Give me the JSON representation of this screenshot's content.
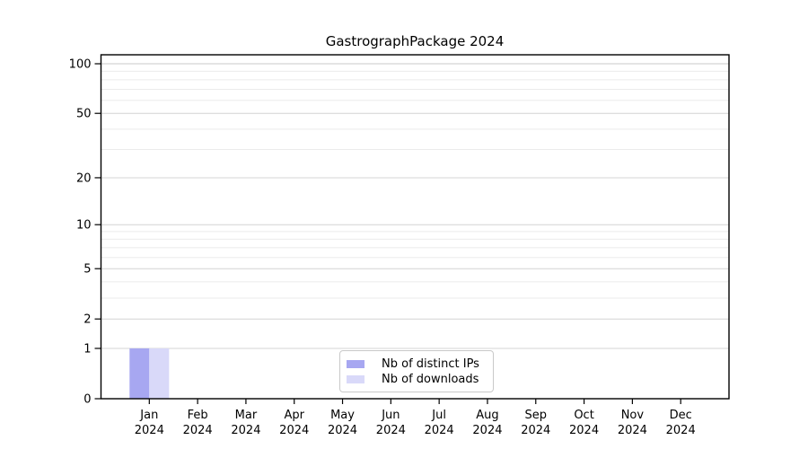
{
  "chart_data": {
    "type": "bar",
    "title": "GastrographPackage 2024",
    "categories": [
      "Jan",
      "Feb",
      "Mar",
      "Apr",
      "May",
      "Jun",
      "Jul",
      "Aug",
      "Sep",
      "Oct",
      "Nov",
      "Dec"
    ],
    "category_year": "2024",
    "series": [
      {
        "name": "Nb of distinct IPs",
        "color": "#a7a7f1",
        "values": [
          1,
          0,
          0,
          0,
          0,
          0,
          0,
          0,
          0,
          0,
          0,
          0
        ]
      },
      {
        "name": "Nb of downloads",
        "color": "#d9d9f9",
        "values": [
          1,
          0,
          0,
          0,
          0,
          0,
          0,
          0,
          0,
          0,
          0,
          0
        ]
      }
    ],
    "xlabel": "",
    "ylabel": "",
    "y_scale": "log10(1+y)",
    "y_major_ticks": [
      0,
      1,
      2,
      5,
      10,
      20,
      50,
      100
    ],
    "y_minor_gridlines": [
      3,
      4,
      6,
      7,
      8,
      9,
      30,
      40,
      60,
      70,
      80,
      90
    ],
    "ylim": [
      0,
      113
    ],
    "grid": "horizontal",
    "legend_position": "lower center"
  },
  "style": {
    "background": "#ffffff",
    "axis_color": "#000000",
    "text_color": "#000000",
    "major_grid_color": "#d4d4d4",
    "minor_grid_color": "#ebebeb",
    "grid_100_color": "#c9c9c9",
    "legend_border_color": "#c9c9c9"
  }
}
